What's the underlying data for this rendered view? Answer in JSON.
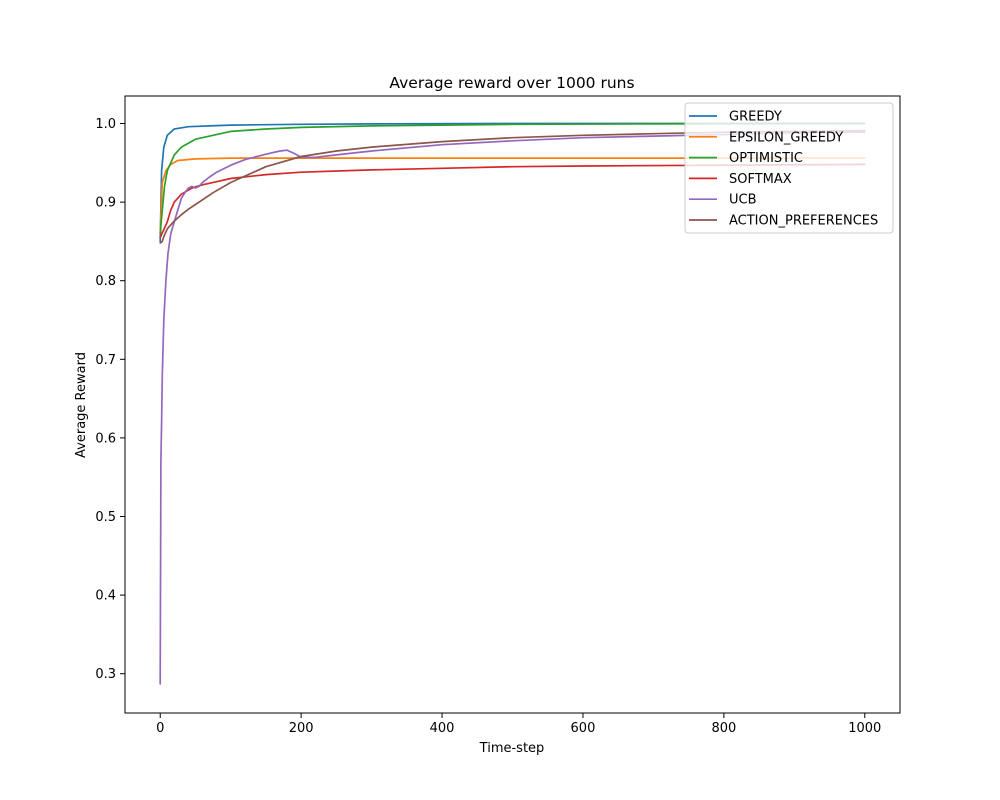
{
  "chart_data": {
    "type": "line",
    "title": "Average reward over 1000 runs",
    "xlabel": "Time-step",
    "ylabel": "Average Reward",
    "xlim": [
      -50,
      1050
    ],
    "ylim": [
      0.25,
      1.035
    ],
    "xticks": [
      0,
      200,
      400,
      600,
      800,
      1000
    ],
    "xtick_labels": [
      "0",
      "200",
      "400",
      "600",
      "800",
      "1000"
    ],
    "yticks": [
      0.3,
      0.4,
      0.5,
      0.6,
      0.7,
      0.8,
      0.9,
      1.0
    ],
    "ytick_labels": [
      "0.3",
      "0.4",
      "0.5",
      "0.6",
      "0.7",
      "0.8",
      "0.9",
      "1.0"
    ],
    "grid": false,
    "legend_position": "top-right",
    "series": [
      {
        "name": "GREEDY",
        "color": "#1f77b4",
        "x": [
          0,
          2,
          5,
          10,
          20,
          40,
          70,
          100,
          200,
          300,
          500,
          700,
          1000
        ],
        "y": [
          0.85,
          0.94,
          0.97,
          0.985,
          0.993,
          0.996,
          0.997,
          0.998,
          0.999,
          0.9995,
          1.0,
          1.0,
          1.0
        ]
      },
      {
        "name": "EPSILON_GREEDY",
        "color": "#ff7f0e",
        "x": [
          0,
          3,
          8,
          15,
          25,
          50,
          100,
          200,
          400,
          600,
          800,
          1000
        ],
        "y": [
          0.86,
          0.925,
          0.94,
          0.948,
          0.953,
          0.955,
          0.956,
          0.956,
          0.956,
          0.956,
          0.956,
          0.956
        ]
      },
      {
        "name": "OPTIMISTIC",
        "color": "#2ca02c",
        "x": [
          0,
          3,
          6,
          10,
          20,
          30,
          50,
          75,
          100,
          150,
          200,
          300,
          400,
          500,
          700,
          1000
        ],
        "y": [
          0.86,
          0.89,
          0.92,
          0.94,
          0.96,
          0.97,
          0.98,
          0.985,
          0.99,
          0.993,
          0.995,
          0.997,
          0.998,
          0.999,
          0.9995,
          1.0
        ]
      },
      {
        "name": "SOFTMAX",
        "color": "#d62728",
        "x": [
          0,
          5,
          10,
          15,
          20,
          30,
          45,
          60,
          80,
          100,
          150,
          200,
          300,
          400,
          500,
          600,
          800,
          1000
        ],
        "y": [
          0.855,
          0.865,
          0.875,
          0.89,
          0.9,
          0.91,
          0.918,
          0.922,
          0.926,
          0.93,
          0.935,
          0.938,
          0.941,
          0.943,
          0.945,
          0.946,
          0.947,
          0.948
        ]
      },
      {
        "name": "UCB",
        "color": "#9467bd",
        "x": [
          0,
          1,
          2,
          3,
          5,
          8,
          11,
          15,
          20,
          25,
          30,
          35,
          40,
          45,
          50,
          55,
          60,
          70,
          80,
          100,
          120,
          150,
          170,
          180,
          190,
          200,
          220,
          250,
          300,
          400,
          500,
          600,
          700,
          800,
          900,
          1000
        ],
        "y": [
          0.287,
          0.57,
          0.62,
          0.68,
          0.75,
          0.8,
          0.835,
          0.86,
          0.875,
          0.89,
          0.905,
          0.912,
          0.918,
          0.92,
          0.918,
          0.92,
          0.925,
          0.932,
          0.938,
          0.947,
          0.954,
          0.961,
          0.965,
          0.966,
          0.962,
          0.957,
          0.957,
          0.96,
          0.965,
          0.973,
          0.978,
          0.982,
          0.984,
          0.986,
          0.988,
          0.989
        ]
      },
      {
        "name": "ACTION_PREFERENCES",
        "color": "#8c564b",
        "x": [
          0,
          3,
          5,
          10,
          20,
          30,
          40,
          50,
          75,
          100,
          150,
          200,
          250,
          300,
          400,
          500,
          600,
          700,
          800,
          900,
          1000
        ],
        "y": [
          0.848,
          0.85,
          0.856,
          0.866,
          0.876,
          0.884,
          0.891,
          0.897,
          0.912,
          0.925,
          0.945,
          0.958,
          0.965,
          0.97,
          0.977,
          0.982,
          0.985,
          0.987,
          0.989,
          0.99,
          0.991
        ]
      }
    ]
  }
}
